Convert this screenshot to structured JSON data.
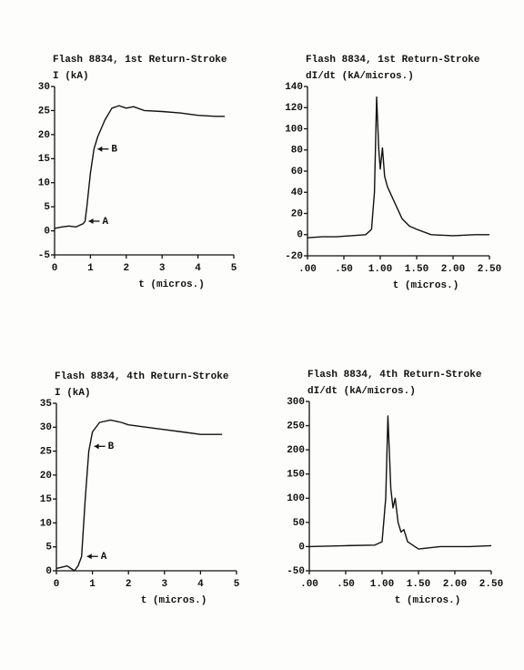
{
  "chart_data": [
    {
      "type": "line",
      "title": "Flash 8834, 1st Return-Stroke",
      "ylabel": "I (kA)",
      "xlabel": "t (micros.)",
      "xlim": [
        0,
        5
      ],
      "xticks": [
        0,
        1,
        2,
        3,
        4,
        5
      ],
      "ylim": [
        -5,
        30
      ],
      "yticks": [
        -5,
        0,
        5,
        10,
        15,
        20,
        25,
        30
      ],
      "color": "#111111",
      "x": [
        0,
        0.2,
        0.4,
        0.6,
        0.8,
        0.85,
        0.9,
        1.0,
        1.1,
        1.2,
        1.4,
        1.6,
        1.8,
        2.0,
        2.2,
        2.5,
        3.0,
        3.5,
        4.0,
        4.5,
        4.75
      ],
      "values": [
        0.5,
        0.8,
        1,
        0.8,
        1.5,
        2,
        5,
        12,
        17,
        19.5,
        23,
        25.5,
        26,
        25.5,
        25.8,
        25,
        24.8,
        24.5,
        24,
        23.8,
        23.8
      ],
      "annotations": [
        {
          "text": "A",
          "x": 0.85,
          "y": 2
        },
        {
          "text": "B",
          "x": 1.1,
          "y": 17
        }
      ]
    },
    {
      "type": "line",
      "title": "Flash 8834, 1st Return-Stroke",
      "ylabel": "dI/dt (kA/micros.)",
      "xlabel": "t (micros.)",
      "xlim": [
        0,
        2.5
      ],
      "xticks": [
        {
          "value": 0,
          "label": ".00"
        },
        {
          "value": 0.5,
          "label": ".50"
        },
        {
          "value": 1,
          "label": "1.00"
        },
        {
          "value": 1.5,
          "label": "1.50"
        },
        {
          "value": 2,
          "label": "2.00"
        },
        {
          "value": 2.5,
          "label": "2.50"
        }
      ],
      "ylim": [
        -20,
        140
      ],
      "yticks": [
        -20,
        0,
        20,
        40,
        60,
        80,
        100,
        120,
        140
      ],
      "color": "#111111",
      "x": [
        0,
        0.2,
        0.4,
        0.6,
        0.8,
        0.88,
        0.92,
        0.95,
        0.98,
        1.0,
        1.03,
        1.06,
        1.1,
        1.2,
        1.3,
        1.4,
        1.5,
        1.7,
        2.0,
        2.3,
        2.5
      ],
      "values": [
        -3,
        -2,
        -2,
        -1,
        0,
        5,
        40,
        130,
        80,
        62,
        82,
        55,
        45,
        30,
        15,
        8,
        5,
        0,
        -1,
        0,
        0
      ]
    },
    {
      "type": "line",
      "title": "Flash 8834, 4th Return-Stroke",
      "ylabel": "I (kA)",
      "xlabel": "t (micros.)",
      "xlim": [
        0,
        5
      ],
      "xticks": [
        0,
        1,
        2,
        3,
        4,
        5
      ],
      "ylim": [
        0,
        35
      ],
      "yticks": [
        0,
        5,
        10,
        15,
        20,
        25,
        30,
        35
      ],
      "color": "#111111",
      "x": [
        0,
        0.3,
        0.5,
        0.6,
        0.7,
        0.8,
        0.9,
        1.0,
        1.2,
        1.5,
        1.8,
        2.0,
        2.5,
        3.0,
        3.5,
        4.0,
        4.6
      ],
      "values": [
        0.5,
        1,
        0,
        1,
        3,
        15,
        25,
        29,
        31,
        31.5,
        31,
        30.5,
        30,
        29.5,
        29,
        28.5,
        28.5
      ],
      "annotations": [
        {
          "text": "A",
          "x": 0.75,
          "y": 3
        },
        {
          "text": "B",
          "x": 0.95,
          "y": 26
        }
      ]
    },
    {
      "type": "line",
      "title": "Flash 8834, 4th Return-Stroke",
      "ylabel": "dI/dt (kA/micros.)",
      "xlabel": "t (micros.)",
      "xlim": [
        0,
        2.5
      ],
      "xticks": [
        {
          "value": 0,
          "label": ".00"
        },
        {
          "value": 0.5,
          "label": ".50"
        },
        {
          "value": 1,
          "label": "1.00"
        },
        {
          "value": 1.5,
          "label": "1.50"
        },
        {
          "value": 2,
          "label": "2.00"
        },
        {
          "value": 2.5,
          "label": "2.50"
        }
      ],
      "ylim": [
        -50,
        300
      ],
      "yticks": [
        -50,
        0,
        50,
        100,
        150,
        200,
        250,
        300
      ],
      "color": "#111111",
      "x": [
        0,
        0.5,
        0.9,
        1.0,
        1.05,
        1.08,
        1.12,
        1.15,
        1.18,
        1.22,
        1.26,
        1.3,
        1.35,
        1.5,
        1.8,
        2.2,
        2.5
      ],
      "values": [
        0,
        2,
        3,
        10,
        100,
        270,
        120,
        80,
        100,
        50,
        30,
        35,
        10,
        -5,
        0,
        0,
        2
      ]
    }
  ]
}
